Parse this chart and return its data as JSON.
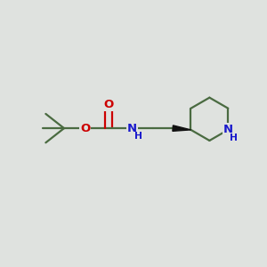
{
  "bg_color": "#dfe2df",
  "bond_color": "#4a6b41",
  "N_color": "#1a1acc",
  "O_color": "#cc0000",
  "line_width": 1.6,
  "font_size_atom": 9.5,
  "fig_size": [
    3.0,
    3.0
  ],
  "dpi": 100,
  "xlim": [
    0,
    10
  ],
  "ylim": [
    0,
    10
  ]
}
